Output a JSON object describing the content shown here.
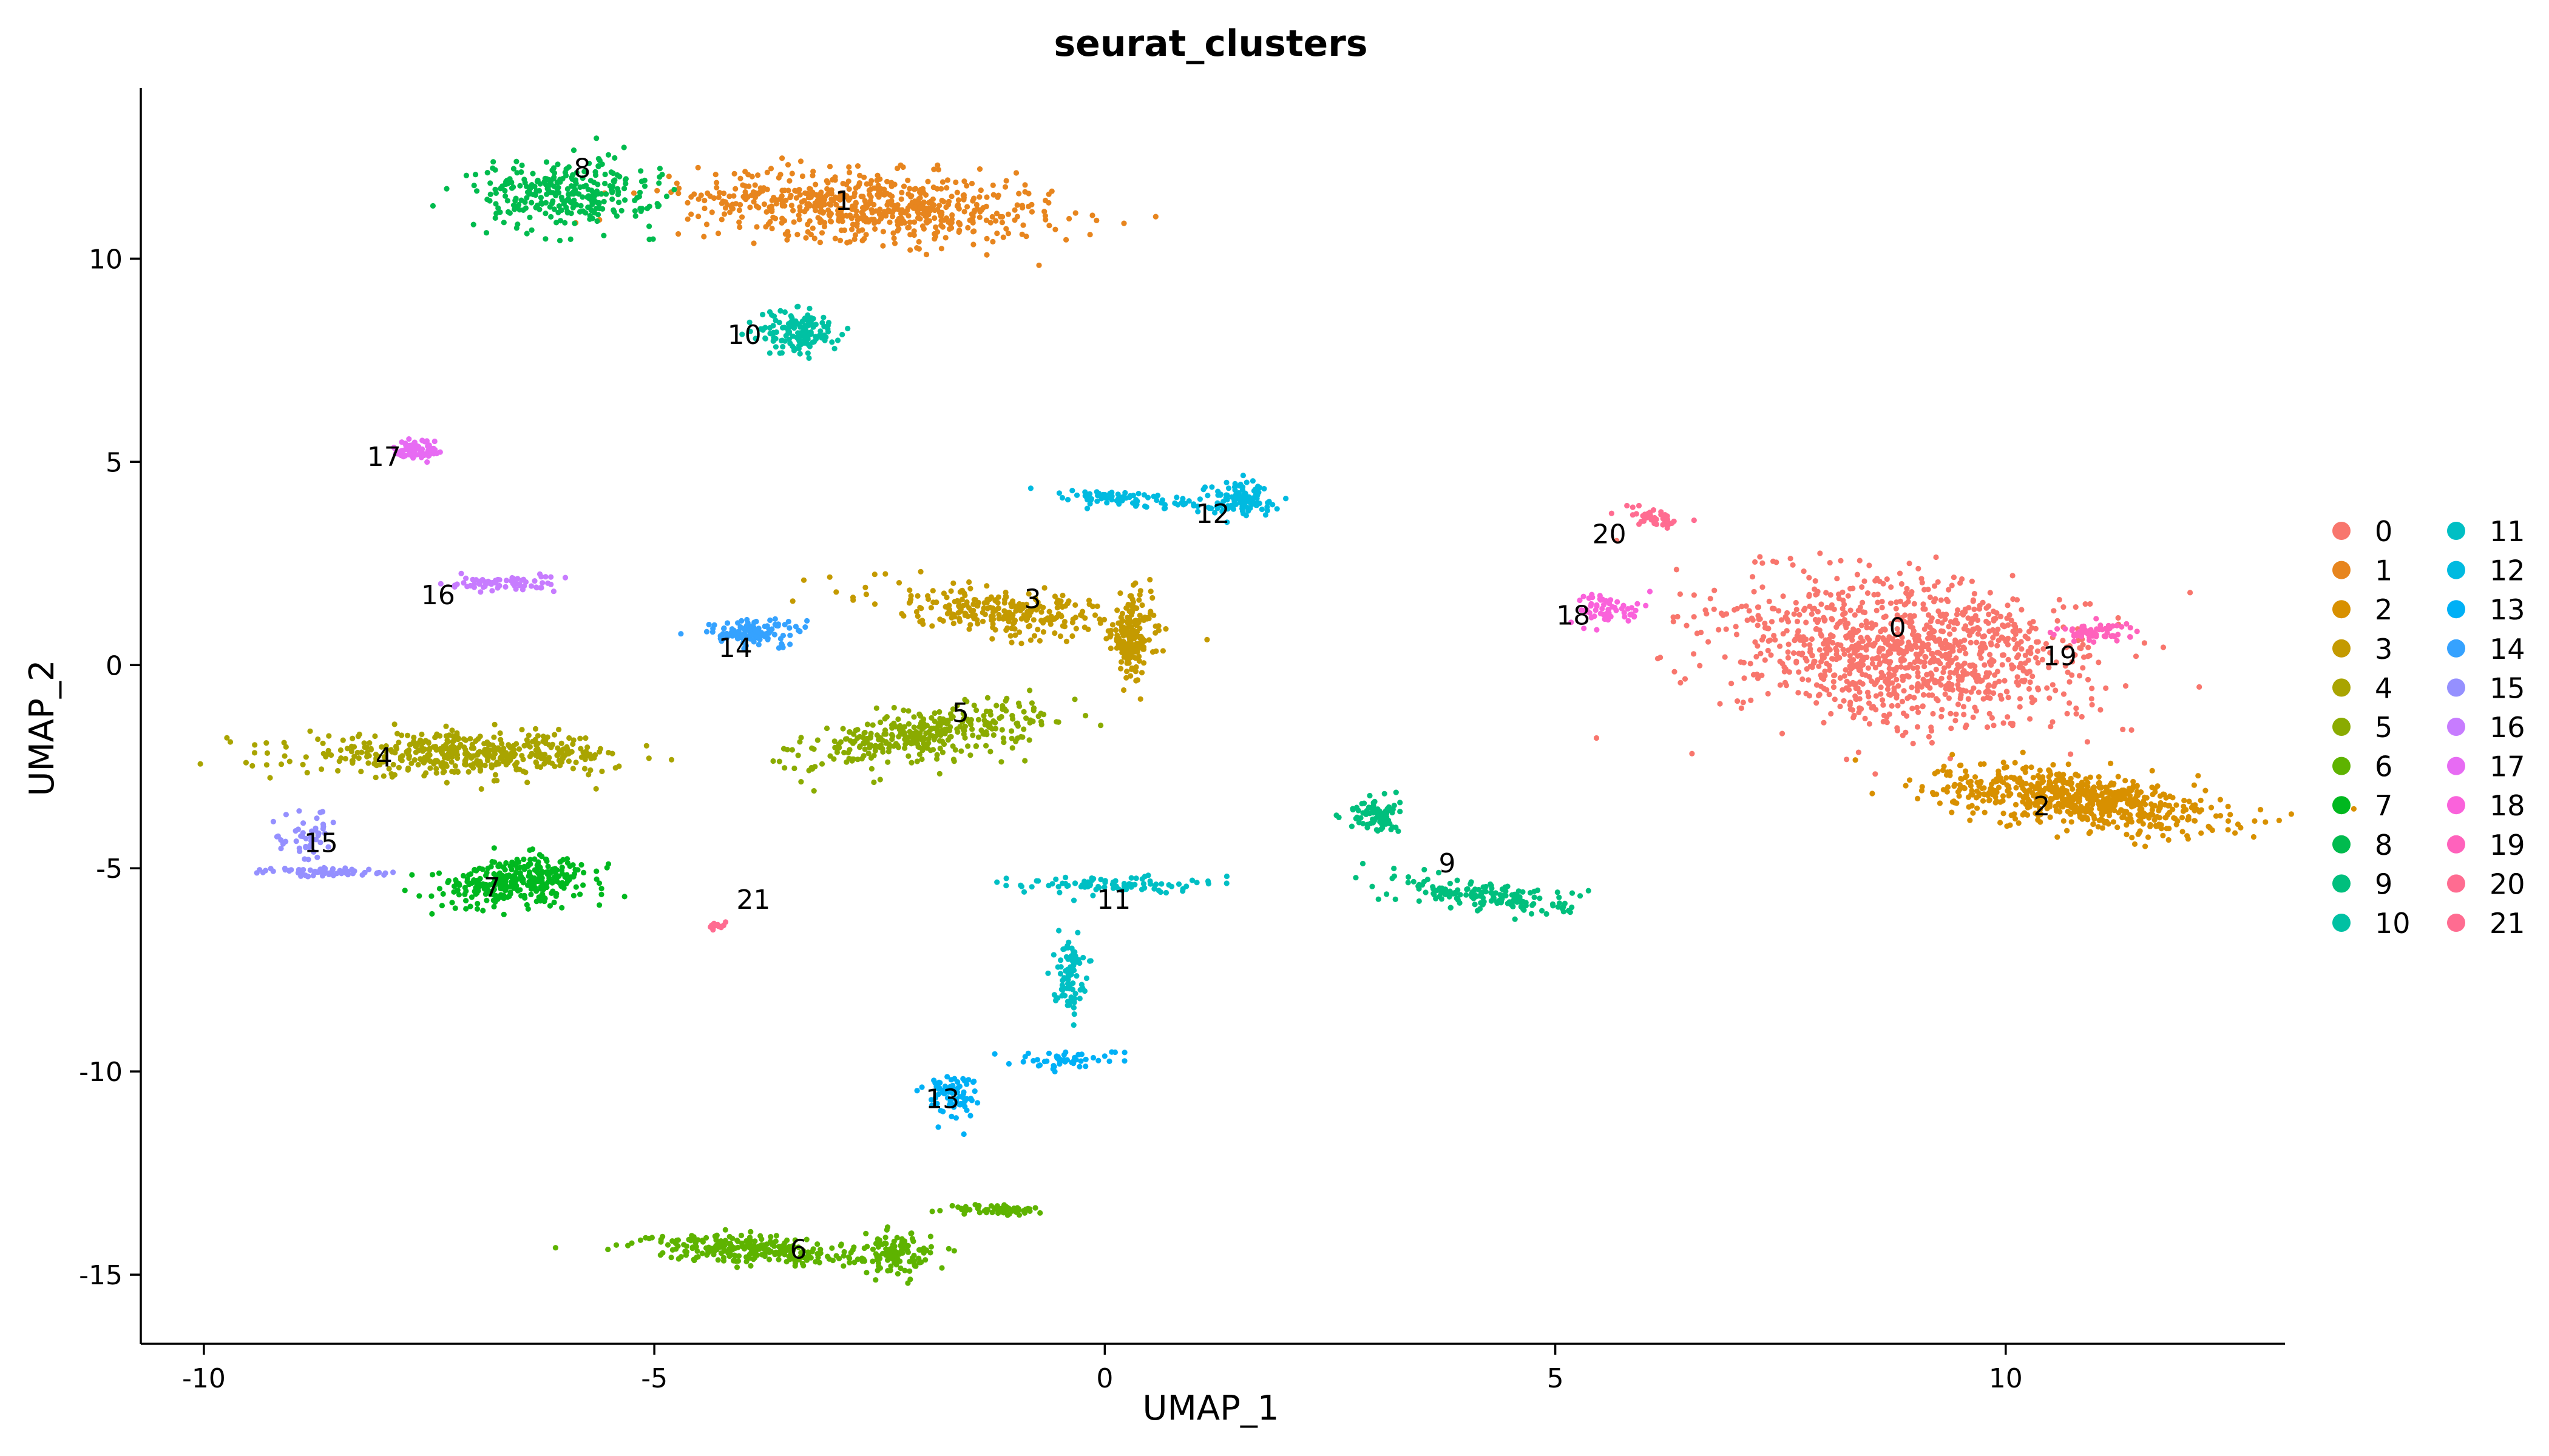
{
  "chart_data": {
    "type": "scatter",
    "title": "seurat_clusters",
    "xlabel": "UMAP_1",
    "ylabel": "UMAP_2",
    "xlim": [
      -10.7,
      13.1
    ],
    "ylim": [
      -16.7,
      14.2
    ],
    "xticks": [
      -10,
      -5,
      0,
      5,
      10
    ],
    "yticks": [
      -15,
      -10,
      -5,
      0,
      5,
      10
    ],
    "xtick_labels": [
      "-10",
      "-5",
      "0",
      "5",
      "10"
    ],
    "ytick_labels": [
      "-15",
      "-10",
      "-5",
      "0",
      "5",
      "10"
    ],
    "legend_position": "right",
    "legend_columns": 2,
    "clusters": [
      {
        "name": "0",
        "color": "#F8766D",
        "label_pos": [
          8.8,
          0.7
        ],
        "blobs": [
          {
            "c": [
              8.9,
              0.3
            ],
            "s": [
              1.9,
              1.6
            ],
            "rot": -35,
            "n": 1100
          }
        ]
      },
      {
        "name": "1",
        "color": "#E7851E",
        "label_pos": [
          -2.9,
          11.2
        ],
        "blobs": [
          {
            "c": [
              -2.6,
              11.3
            ],
            "s": [
              1.8,
              0.75
            ],
            "rot": -8,
            "n": 650
          }
        ]
      },
      {
        "name": "2",
        "color": "#D89000",
        "label_pos": [
          10.4,
          -3.7
        ],
        "blobs": [
          {
            "c": [
              10.8,
              -3.3
            ],
            "s": [
              1.5,
              0.6
            ],
            "rot": -18,
            "n": 650
          }
        ]
      },
      {
        "name": "3",
        "color": "#C49A00",
        "label_pos": [
          -0.8,
          1.4
        ],
        "blobs": [
          {
            "c": [
              -1.1,
              1.3
            ],
            "s": [
              1.4,
              0.5
            ],
            "rot": -18,
            "n": 280
          },
          {
            "c": [
              0.3,
              0.7
            ],
            "s": [
              0.2,
              0.9
            ],
            "rot": 0,
            "n": 170
          }
        ]
      },
      {
        "name": "4",
        "color": "#A9A400",
        "label_pos": [
          -8.0,
          -2.5
        ],
        "blobs": [
          {
            "c": [
              -7.1,
              -2.2
            ],
            "s": [
              1.6,
              0.45
            ],
            "rot": 0,
            "n": 450
          }
        ]
      },
      {
        "name": "5",
        "color": "#8AAB00",
        "label_pos": [
          -1.6,
          -1.4
        ],
        "blobs": [
          {
            "c": [
              -2.0,
              -1.7
            ],
            "s": [
              1.3,
              0.55
            ],
            "rot": 25,
            "n": 350
          }
        ]
      },
      {
        "name": "6",
        "color": "#5EB300",
        "label_pos": [
          -3.4,
          -14.6
        ],
        "blobs": [
          {
            "c": [
              -3.9,
              -14.4
            ],
            "s": [
              1.1,
              0.3
            ],
            "rot": -8,
            "n": 260
          },
          {
            "c": [
              -2.3,
              -14.5
            ],
            "s": [
              0.35,
              0.45
            ],
            "rot": 0,
            "n": 110
          },
          {
            "c": [
              -1.2,
              -13.4
            ],
            "s": [
              0.5,
              0.12
            ],
            "rot": 0,
            "n": 60
          }
        ]
      },
      {
        "name": "7",
        "color": "#00B81F",
        "label_pos": [
          -6.8,
          -5.7
        ],
        "blobs": [
          {
            "c": [
              -6.5,
              -5.3
            ],
            "s": [
              0.8,
              0.5
            ],
            "rot": 15,
            "n": 330
          }
        ]
      },
      {
        "name": "8",
        "color": "#00BB4E",
        "label_pos": [
          -5.8,
          12.0
        ],
        "blobs": [
          {
            "c": [
              -6.0,
              11.6
            ],
            "s": [
              0.9,
              0.75
            ],
            "rot": 0,
            "n": 300
          }
        ]
      },
      {
        "name": "9",
        "color": "#00BF7D",
        "label_pos": [
          3.8,
          -5.1
        ],
        "blobs": [
          {
            "c": [
              3.0,
              -3.7
            ],
            "s": [
              0.25,
              0.4
            ],
            "rot": 0,
            "n": 80
          },
          {
            "c": [
              4.3,
              -5.7
            ],
            "s": [
              0.9,
              0.35
            ],
            "rot": -15,
            "n": 170
          }
        ]
      },
      {
        "name": "10",
        "color": "#00C1A3",
        "label_pos": [
          -4.0,
          7.9
        ],
        "blobs": [
          {
            "c": [
              -3.4,
              8.2
            ],
            "s": [
              0.4,
              0.5
            ],
            "rot": 0,
            "n": 140
          }
        ]
      },
      {
        "name": "11",
        "color": "#00BFC4",
        "label_pos": [
          0.1,
          -6.0
        ],
        "blobs": [
          {
            "c": [
              0.0,
              -5.4
            ],
            "s": [
              0.9,
              0.2
            ],
            "rot": 0,
            "n": 90
          },
          {
            "c": [
              -0.4,
              -7.6
            ],
            "s": [
              0.15,
              0.8
            ],
            "rot": 0,
            "n": 90
          }
        ]
      },
      {
        "name": "12",
        "color": "#00BAE0",
        "label_pos": [
          1.2,
          3.5
        ],
        "blobs": [
          {
            "c": [
              1.5,
              4.1
            ],
            "s": [
              0.35,
              0.35
            ],
            "rot": 0,
            "n": 110
          },
          {
            "c": [
              0.2,
              4.1
            ],
            "s": [
              0.9,
              0.18
            ],
            "rot": -10,
            "n": 80
          }
        ]
      },
      {
        "name": "13",
        "color": "#00B0F6",
        "label_pos": [
          -1.8,
          -10.9
        ],
        "blobs": [
          {
            "c": [
              -1.7,
              -10.6
            ],
            "s": [
              0.25,
              0.5
            ],
            "rot": 0,
            "n": 80
          },
          {
            "c": [
              -0.4,
              -9.7
            ],
            "s": [
              0.6,
              0.2
            ],
            "rot": 0,
            "n": 50
          }
        ]
      },
      {
        "name": "14",
        "color": "#35A2FF",
        "label_pos": [
          -4.1,
          0.2
        ],
        "blobs": [
          {
            "c": [
              -3.9,
              0.8
            ],
            "s": [
              0.5,
              0.3
            ],
            "rot": 0,
            "n": 120
          }
        ]
      },
      {
        "name": "15",
        "color": "#9590FF",
        "label_pos": [
          -8.7,
          -4.6
        ],
        "blobs": [
          {
            "c": [
              -8.6,
              -5.1
            ],
            "s": [
              0.7,
              0.1
            ],
            "rot": 0,
            "n": 60
          },
          {
            "c": [
              -8.9,
              -4.3
            ],
            "s": [
              0.3,
              0.7
            ],
            "rot": 0,
            "n": 50
          }
        ]
      },
      {
        "name": "16",
        "color": "#C77CFF",
        "label_pos": [
          -7.4,
          1.5
        ],
        "blobs": [
          {
            "c": [
              -6.7,
              2.0
            ],
            "s": [
              0.55,
              0.18
            ],
            "rot": 0,
            "n": 70
          }
        ]
      },
      {
        "name": "17",
        "color": "#E76BF3",
        "label_pos": [
          -8.0,
          4.9
        ],
        "blobs": [
          {
            "c": [
              -7.6,
              5.3
            ],
            "s": [
              0.25,
              0.25
            ],
            "rot": 0,
            "n": 80
          }
        ]
      },
      {
        "name": "18",
        "color": "#FA62DB",
        "label_pos": [
          5.2,
          1.0
        ],
        "blobs": [
          {
            "c": [
              5.6,
              1.4
            ],
            "s": [
              0.35,
              0.35
            ],
            "rot": 0,
            "n": 60
          }
        ]
      },
      {
        "name": "19",
        "color": "#FF62BC",
        "label_pos": [
          10.6,
          0.0
        ],
        "blobs": [
          {
            "c": [
              11.0,
              0.8
            ],
            "s": [
              0.45,
              0.22
            ],
            "rot": 0,
            "n": 60
          }
        ]
      },
      {
        "name": "20",
        "color": "#FF6C91",
        "label_pos": [
          5.6,
          3.0
        ],
        "blobs": [
          {
            "c": [
              6.1,
              3.6
            ],
            "s": [
              0.3,
              0.2
            ],
            "rot": -20,
            "n": 40
          }
        ]
      },
      {
        "name": "21",
        "color": "#FF6C91",
        "label_pos": [
          -3.9,
          -6.0
        ],
        "blobs": [
          {
            "c": [
              -4.3,
              -6.4
            ],
            "s": [
              0.1,
              0.08
            ],
            "rot": 0,
            "n": 15
          }
        ]
      }
    ],
    "legend": {
      "items": [
        "0",
        "1",
        "2",
        "3",
        "4",
        "5",
        "6",
        "7",
        "8",
        "9",
        "10",
        "11",
        "12",
        "13",
        "14",
        "15",
        "16",
        "17",
        "18",
        "19",
        "20",
        "21"
      ]
    }
  }
}
